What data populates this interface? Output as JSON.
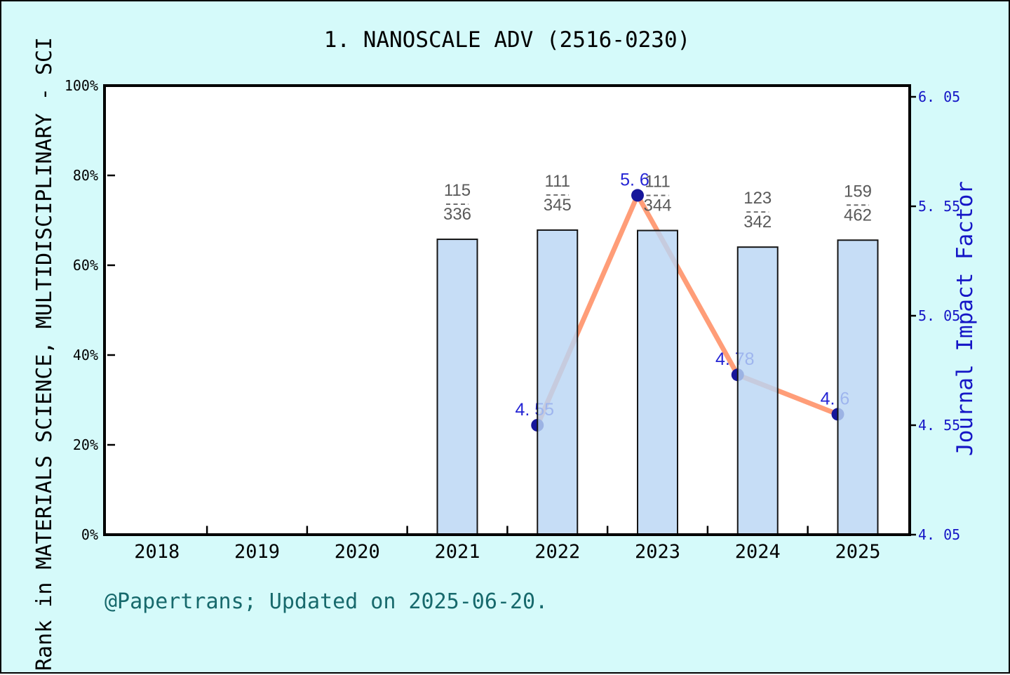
{
  "page": {
    "title": "1. NANOSCALE ADV (2516-0230)",
    "footer": "@Papertrans; Updated on 2025-06-20."
  },
  "colors": {
    "background": "#d5fafa",
    "plot_background": "#ffffff",
    "bar_fill": "#b9d6f4",
    "bar_fill_opacity": 0.82,
    "bar_edge": "#141414",
    "line": "#ff9d78",
    "marker": "#17179b",
    "jif_label_text": "#2424d4",
    "right_axis_text": "#1515c6",
    "fraction_text": "#595959",
    "fraction_divider": "#6e6e6e",
    "footer_text": "#17696c",
    "axis_text": "#000000"
  },
  "chart_data": {
    "type": "combo: bar (rank percentile, left axis) + line (journal impact factor, right axis)",
    "title": "1. NANOSCALE ADV (2516-0230)",
    "grid": false,
    "legend": false,
    "x_axis": {
      "tick_labels": [
        "2018",
        "2019",
        "2020",
        "2021",
        "2022",
        "2023",
        "2024",
        "2025"
      ],
      "minor_ticks_at_half_years": true
    },
    "left_y_axis": {
      "label": "Rank in MATERIALS SCIENCE, MULTIDISCIPLINARY - SCI",
      "tick_labels": [
        "0%",
        "20%",
        "40%",
        "60%",
        "80%",
        "100%"
      ],
      "tick_values": [
        0,
        20,
        40,
        60,
        80,
        100
      ],
      "range": [
        0,
        100
      ],
      "unit": "%"
    },
    "right_y_axis": {
      "label": "Journal Impact Factor",
      "tick_labels": [
        "4. 05",
        "4. 55",
        "5. 05",
        "5. 55",
        "6. 05"
      ],
      "tick_values": [
        4.05,
        4.55,
        5.05,
        5.55,
        6.05
      ],
      "range": [
        4.05,
        6.05
      ]
    },
    "bars": [
      {
        "year": 2021,
        "rank": 115,
        "total": 336,
        "percentile": 65.8
      },
      {
        "year": 2022,
        "rank": 111,
        "total": 345,
        "percentile": 67.8
      },
      {
        "year": 2023,
        "rank": 111,
        "total": 344,
        "percentile": 67.7
      },
      {
        "year": 2024,
        "rank": 123,
        "total": 342,
        "percentile": 64.0
      },
      {
        "year": 2025,
        "rank": 159,
        "total": 462,
        "percentile": 65.6
      }
    ],
    "line": {
      "name": "Journal Impact Factor",
      "points": [
        {
          "year": 2022,
          "value": 4.55,
          "label": "4. 55"
        },
        {
          "year": 2023,
          "value": 5.6,
          "label": "5. 6"
        },
        {
          "year": 2024,
          "value": 4.78,
          "label": "4. 78"
        },
        {
          "year": 2025,
          "value": 4.6,
          "label": "4. 6"
        }
      ]
    }
  }
}
